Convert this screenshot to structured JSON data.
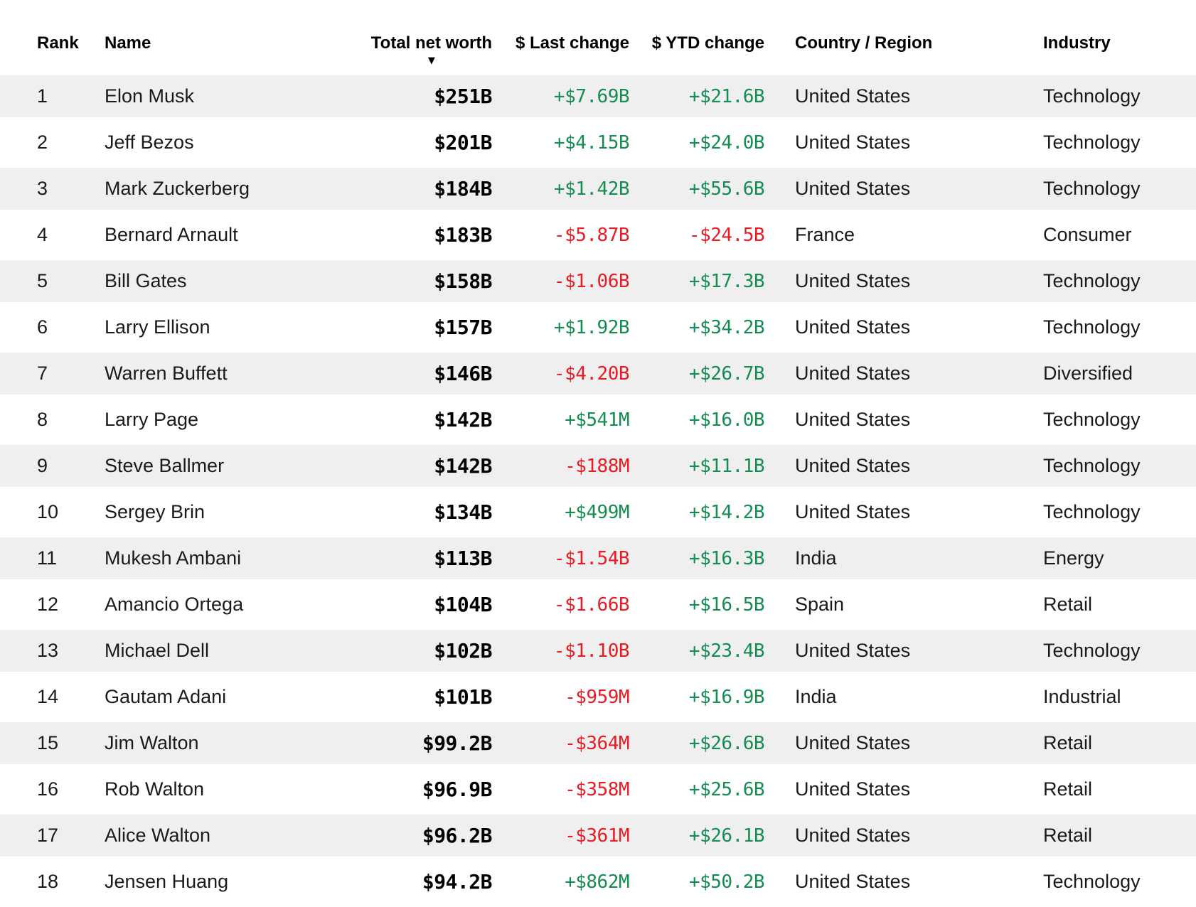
{
  "colors": {
    "positive": "#158c52",
    "negative": "#e81c24",
    "stripe": "#efefef"
  },
  "header": {
    "sort_icon": "▼",
    "columns": [
      {
        "label": "Rank"
      },
      {
        "label": "Name"
      },
      {
        "label": "Total net worth",
        "sorted": "desc"
      },
      {
        "label": "$ Last change"
      },
      {
        "label": "$ YTD change"
      },
      {
        "label": "Country / Region"
      },
      {
        "label": "Industry"
      }
    ]
  },
  "rows": [
    {
      "rank": "1",
      "name": "Elon Musk",
      "net_worth": "$251B",
      "last_change": "+$7.69B",
      "ytd_change": "+$21.6B",
      "country": "United States",
      "industry": "Technology"
    },
    {
      "rank": "2",
      "name": "Jeff Bezos",
      "net_worth": "$201B",
      "last_change": "+$4.15B",
      "ytd_change": "+$24.0B",
      "country": "United States",
      "industry": "Technology"
    },
    {
      "rank": "3",
      "name": "Mark Zuckerberg",
      "net_worth": "$184B",
      "last_change": "+$1.42B",
      "ytd_change": "+$55.6B",
      "country": "United States",
      "industry": "Technology"
    },
    {
      "rank": "4",
      "name": "Bernard Arnault",
      "net_worth": "$183B",
      "last_change": "-$5.87B",
      "ytd_change": "-$24.5B",
      "country": "France",
      "industry": "Consumer"
    },
    {
      "rank": "5",
      "name": "Bill Gates",
      "net_worth": "$158B",
      "last_change": "-$1.06B",
      "ytd_change": "+$17.3B",
      "country": "United States",
      "industry": "Technology"
    },
    {
      "rank": "6",
      "name": "Larry Ellison",
      "net_worth": "$157B",
      "last_change": "+$1.92B",
      "ytd_change": "+$34.2B",
      "country": "United States",
      "industry": "Technology"
    },
    {
      "rank": "7",
      "name": "Warren Buffett",
      "net_worth": "$146B",
      "last_change": "-$4.20B",
      "ytd_change": "+$26.7B",
      "country": "United States",
      "industry": "Diversified"
    },
    {
      "rank": "8",
      "name": "Larry Page",
      "net_worth": "$142B",
      "last_change": "+$541M",
      "ytd_change": "+$16.0B",
      "country": "United States",
      "industry": "Technology"
    },
    {
      "rank": "9",
      "name": "Steve Ballmer",
      "net_worth": "$142B",
      "last_change": "-$188M",
      "ytd_change": "+$11.1B",
      "country": "United States",
      "industry": "Technology"
    },
    {
      "rank": "10",
      "name": "Sergey Brin",
      "net_worth": "$134B",
      "last_change": "+$499M",
      "ytd_change": "+$14.2B",
      "country": "United States",
      "industry": "Technology"
    },
    {
      "rank": "11",
      "name": "Mukesh Ambani",
      "net_worth": "$113B",
      "last_change": "-$1.54B",
      "ytd_change": "+$16.3B",
      "country": "India",
      "industry": "Energy"
    },
    {
      "rank": "12",
      "name": "Amancio Ortega",
      "net_worth": "$104B",
      "last_change": "-$1.66B",
      "ytd_change": "+$16.5B",
      "country": "Spain",
      "industry": "Retail"
    },
    {
      "rank": "13",
      "name": "Michael Dell",
      "net_worth": "$102B",
      "last_change": "-$1.10B",
      "ytd_change": "+$23.4B",
      "country": "United States",
      "industry": "Technology"
    },
    {
      "rank": "14",
      "name": "Gautam Adani",
      "net_worth": "$101B",
      "last_change": "-$959M",
      "ytd_change": "+$16.9B",
      "country": "India",
      "industry": "Industrial"
    },
    {
      "rank": "15",
      "name": "Jim Walton",
      "net_worth": "$99.2B",
      "last_change": "-$364M",
      "ytd_change": "+$26.6B",
      "country": "United States",
      "industry": "Retail"
    },
    {
      "rank": "16",
      "name": "Rob Walton",
      "net_worth": "$96.9B",
      "last_change": "-$358M",
      "ytd_change": "+$25.6B",
      "country": "United States",
      "industry": "Retail"
    },
    {
      "rank": "17",
      "name": "Alice Walton",
      "net_worth": "$96.2B",
      "last_change": "-$361M",
      "ytd_change": "+$26.1B",
      "country": "United States",
      "industry": "Retail"
    },
    {
      "rank": "18",
      "name": "Jensen Huang",
      "net_worth": "$94.2B",
      "last_change": "+$862M",
      "ytd_change": "+$50.2B",
      "country": "United States",
      "industry": "Technology"
    }
  ]
}
